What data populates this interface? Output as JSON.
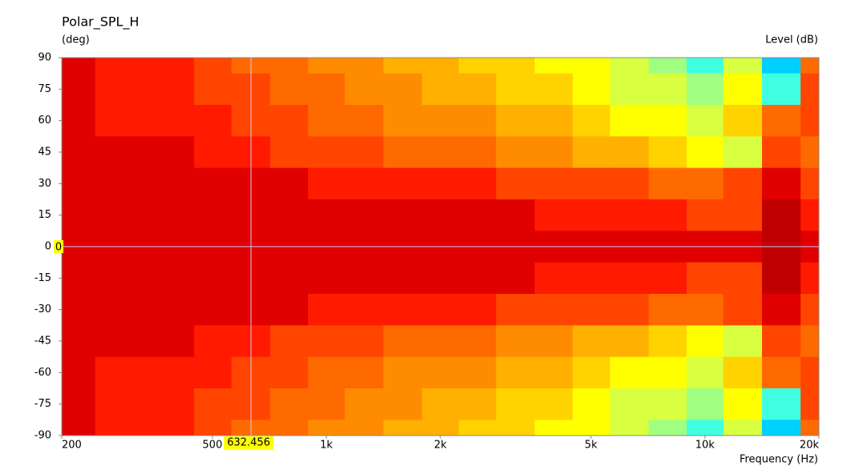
{
  "chart_data": {
    "type": "contour",
    "title": "Polar_SPL_H",
    "y_label": "(deg)",
    "z_label": "Level  (dB)",
    "x_label": "Frequency  (Hz)",
    "xscale": "log",
    "xlim": [
      200,
      20000
    ],
    "ylim": [
      -90,
      90
    ],
    "xticks": [
      200,
      {
        "value": 500,
        "label": "500"
      },
      {
        "value": 1000,
        "label": "1k"
      },
      {
        "value": 2000,
        "label": "2k"
      },
      {
        "value": 5000,
        "label": "5k"
      },
      {
        "value": 10000,
        "label": "10k"
      },
      {
        "value": 20000,
        "label": "20k"
      }
    ],
    "yticks": [
      90,
      75,
      60,
      45,
      30,
      15,
      0,
      -15,
      -30,
      -45,
      -60,
      -75,
      -90
    ],
    "levels": [
      0,
      -3,
      -6,
      -9,
      -12,
      -15,
      -18,
      -21,
      -24,
      -27,
      -30,
      -33
    ],
    "colors": [
      "#c00000",
      "#e00000",
      "#ff1a00",
      "#ff4500",
      "#ff6a00",
      "#ff8c00",
      "#ffb000",
      "#ffd200",
      "#ffff00",
      "#d8ff40",
      "#a0ff80",
      "#40ffe0",
      "#00d0ff"
    ],
    "x": [
      200,
      300,
      400,
      500,
      630,
      800,
      1000,
      1250,
      1600,
      2000,
      2500,
      3150,
      4000,
      5000,
      6300,
      8000,
      10000,
      12500,
      16000,
      20000
    ],
    "y": [
      90,
      75,
      60,
      45,
      30,
      15,
      0,
      -15,
      -30,
      -45,
      -60,
      -75,
      -90
    ],
    "z": [
      [
        -3,
        -4.5,
        -5.5,
        -7.5,
        -9.5,
        -11,
        -12.5,
        -14,
        -15.5,
        -17,
        -18.5,
        -20,
        -22,
        -24,
        -26,
        -29,
        -32,
        -26,
        -34,
        -10
      ],
      [
        -2.5,
        -4,
        -5,
        -7,
        -9,
        -10.5,
        -12,
        -13.5,
        -15,
        -16.5,
        -18,
        -19.5,
        -21,
        -23,
        -25,
        -27,
        -30,
        -22,
        -31,
        -9
      ],
      [
        -2,
        -3.5,
        -4.5,
        -5.5,
        -7,
        -9,
        -10,
        -11,
        -12.5,
        -14,
        -15,
        -16.5,
        -18,
        -20,
        -22,
        -24,
        -26,
        -20,
        -10,
        -8
      ],
      [
        -1,
        -2,
        -2.5,
        -3.5,
        -4.5,
        -6.5,
        -7.5,
        -8.5,
        -9.5,
        -10.5,
        -11.5,
        -12.5,
        -14,
        -16,
        -18,
        -20,
        -22,
        -25,
        -8,
        -10
      ],
      [
        -1,
        -1,
        -1,
        -1.5,
        -2,
        -2.5,
        -3.5,
        -4,
        -4.5,
        -5,
        -6,
        -6.5,
        -7,
        -8,
        -9,
        -11,
        -12,
        -7,
        -2,
        -8
      ],
      [
        -1,
        -1,
        -1,
        -1,
        -1,
        -1.5,
        -2,
        -2,
        -2,
        -2,
        -2,
        -2,
        -3.5,
        -4,
        -5,
        -6,
        -7,
        -8,
        1,
        -4
      ],
      [
        -1,
        -1,
        -1,
        -1,
        -1,
        -1,
        -1,
        -1,
        -1,
        -1,
        -1,
        -1,
        -1,
        -1,
        -1,
        -1,
        -1,
        -1,
        1,
        -3
      ],
      [
        -1,
        -1,
        -1,
        -1,
        -1,
        -1.5,
        -2,
        -2,
        -2,
        -2,
        -2,
        -2,
        -3.5,
        -4,
        -5,
        -6,
        -7,
        -8,
        1,
        -4
      ],
      [
        -1,
        -1,
        -1,
        -1.5,
        -2,
        -2.5,
        -3.5,
        -4,
        -4.5,
        -5,
        -6,
        -6.5,
        -7,
        -8,
        -9,
        -11,
        -12,
        -7,
        -2,
        -8
      ],
      [
        -1,
        -2,
        -2.5,
        -3.5,
        -4.5,
        -6.5,
        -7.5,
        -8.5,
        -9.5,
        -10.5,
        -11.5,
        -12.5,
        -14,
        -16,
        -18,
        -20,
        -22,
        -25,
        -8,
        -10
      ],
      [
        -2,
        -3.5,
        -4.5,
        -5.5,
        -7,
        -9,
        -10,
        -11,
        -12.5,
        -14,
        -15,
        -16.5,
        -18,
        -20,
        -22,
        -24,
        -26,
        -20,
        -10,
        -8
      ],
      [
        -2.5,
        -4,
        -5,
        -7,
        -9,
        -10.5,
        -12,
        -13.5,
        -15,
        -16.5,
        -18,
        -19.5,
        -21,
        -23,
        -25,
        -27,
        -30,
        -22,
        -31,
        -9
      ],
      [
        -3,
        -4.5,
        -5.5,
        -7.5,
        -9.5,
        -11,
        -12.5,
        -14,
        -15.5,
        -17,
        -18.5,
        -20,
        -22,
        -24,
        -26,
        -29,
        -32,
        -26,
        -34,
        -10
      ]
    ],
    "cursor": {
      "x": 632.456,
      "y": 0,
      "x_label": "632.456",
      "y_label": "0"
    }
  }
}
